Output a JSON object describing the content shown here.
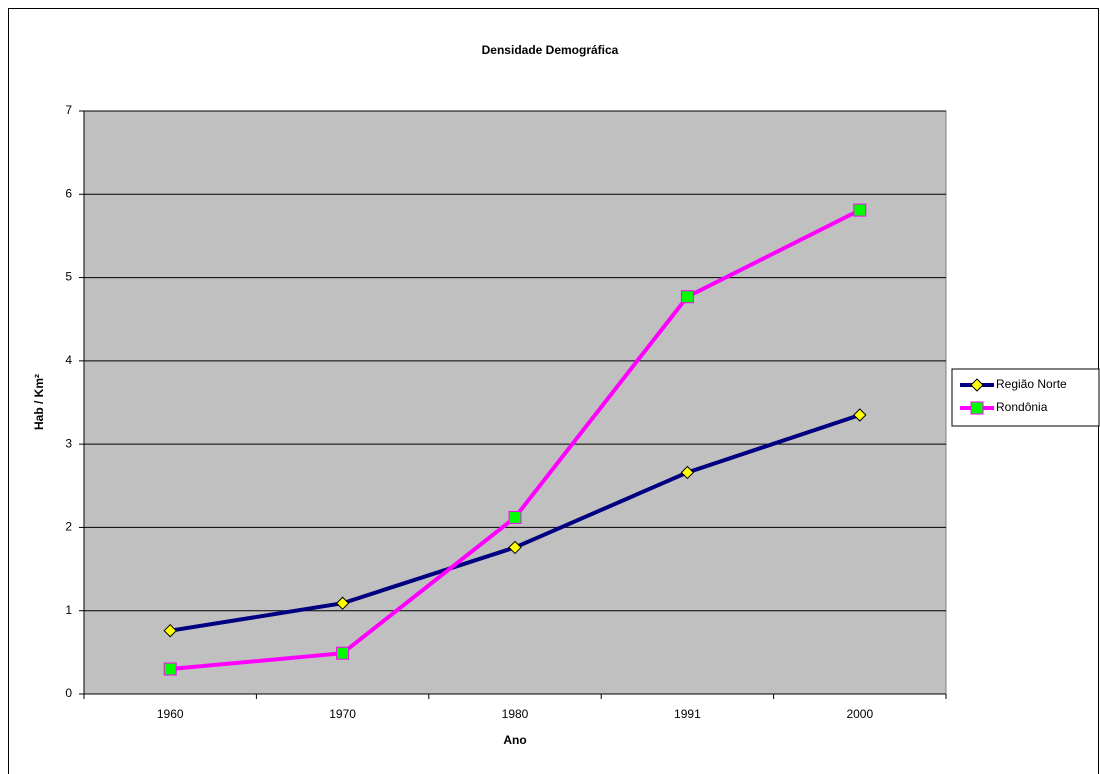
{
  "chart_data": {
    "type": "line",
    "title": "Densidade Demográfica",
    "x_label": "Ano",
    "y_label": "Hab / Km²",
    "categories": [
      "1960",
      "1970",
      "1980",
      "1991",
      "2000"
    ],
    "series": [
      {
        "name": "Região Norte",
        "color": "#000080",
        "marker": "diamond",
        "marker_color": "#ffff00",
        "values": [
          0.76,
          1.09,
          1.76,
          2.66,
          3.35
        ]
      },
      {
        "name": "Rondônia",
        "color": "#ff00ff",
        "marker": "square",
        "marker_color": "#00ff00",
        "values": [
          0.3,
          0.49,
          2.12,
          4.77,
          5.81
        ]
      }
    ],
    "ylim": [
      0,
      7
    ],
    "yticks": [
      0,
      1,
      2,
      3,
      4,
      5,
      6,
      7
    ],
    "grid": true,
    "legend": "right",
    "plot_background": "#c0c0c0"
  }
}
